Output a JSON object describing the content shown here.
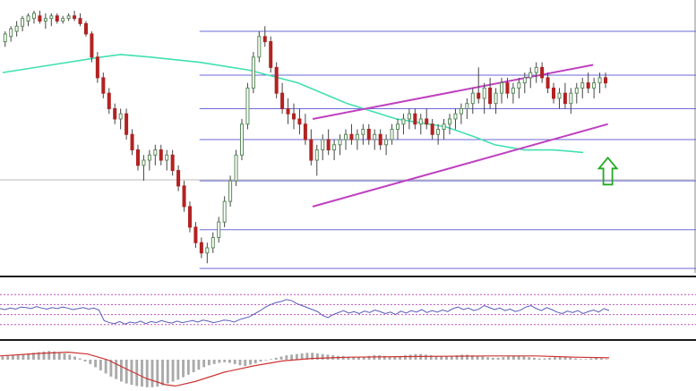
{
  "colors": {
    "bull": "#5a8a5a",
    "bull_fill": "#ffffff",
    "bear": "#b22222",
    "wick": "#444444",
    "ma": "#40e0b0",
    "fib": "#6a6ad8",
    "channel": "#c040c0",
    "arrow": "#22aa22",
    "rsi": "#5a5ab8",
    "rsi_guides": "#c050c0",
    "macd_signal": "#cc3333",
    "macd_hist": "#aaaaaa",
    "separator": "#1a1a1a"
  },
  "chart_data": [
    {
      "type": "candlestick",
      "panel": "price",
      "title": "",
      "xlabel": "",
      "ylabel": "",
      "x_range": [
        0,
        140
      ],
      "y_range": [
        0,
        100
      ],
      "candles": [
        [
          88,
          92,
          86,
          91
        ],
        [
          90,
          94,
          88,
          93
        ],
        [
          92,
          96,
          90,
          94
        ],
        [
          94,
          98,
          92,
          97
        ],
        [
          96,
          99,
          94,
          98
        ],
        [
          97,
          100,
          95,
          99
        ],
        [
          98,
          100,
          95,
          96
        ],
        [
          96,
          99,
          93,
          97
        ],
        [
          97,
          99,
          94,
          98
        ],
        [
          98,
          99,
          95,
          96
        ],
        [
          96,
          98,
          95,
          97
        ],
        [
          97,
          99,
          96,
          98
        ],
        [
          98,
          100,
          96,
          97
        ],
        [
          97,
          99,
          94,
          95
        ],
        [
          95,
          96,
          90,
          91
        ],
        [
          91,
          92,
          80,
          82
        ],
        [
          82,
          84,
          72,
          74
        ],
        [
          74,
          76,
          66,
          68
        ],
        [
          68,
          70,
          60,
          62
        ],
        [
          62,
          64,
          56,
          58
        ],
        [
          58,
          62,
          54,
          60
        ],
        [
          60,
          62,
          50,
          52
        ],
        [
          52,
          54,
          44,
          46
        ],
        [
          46,
          48,
          38,
          40
        ],
        [
          40,
          44,
          34,
          42
        ],
        [
          42,
          46,
          38,
          44
        ],
        [
          44,
          48,
          40,
          46
        ],
        [
          46,
          48,
          40,
          42
        ],
        [
          42,
          46,
          38,
          44
        ],
        [
          44,
          46,
          36,
          38
        ],
        [
          38,
          40,
          30,
          32
        ],
        [
          32,
          34,
          22,
          24
        ],
        [
          24,
          26,
          14,
          16
        ],
        [
          16,
          18,
          8,
          10
        ],
        [
          10,
          12,
          4,
          6
        ],
        [
          6,
          10,
          2,
          8
        ],
        [
          8,
          14,
          6,
          12
        ],
        [
          12,
          20,
          10,
          18
        ],
        [
          18,
          28,
          16,
          26
        ],
        [
          26,
          36,
          24,
          34
        ],
        [
          34,
          46,
          32,
          44
        ],
        [
          44,
          58,
          42,
          56
        ],
        [
          56,
          72,
          54,
          70
        ],
        [
          70,
          84,
          68,
          82
        ],
        [
          82,
          92,
          80,
          90
        ],
        [
          90,
          94,
          86,
          88
        ],
        [
          88,
          90,
          76,
          78
        ],
        [
          78,
          80,
          66,
          68
        ],
        [
          68,
          72,
          60,
          62
        ],
        [
          62,
          66,
          56,
          60
        ],
        [
          60,
          64,
          54,
          58
        ],
        [
          58,
          62,
          52,
          56
        ],
        [
          56,
          60,
          48,
          50
        ],
        [
          50,
          54,
          40,
          42
        ],
        [
          42,
          48,
          36,
          46
        ],
        [
          46,
          52,
          42,
          50
        ],
        [
          50,
          54,
          44,
          46
        ],
        [
          46,
          50,
          42,
          48
        ],
        [
          48,
          52,
          44,
          50
        ],
        [
          50,
          54,
          46,
          52
        ],
        [
          52,
          56,
          48,
          50
        ],
        [
          50,
          54,
          46,
          52
        ],
        [
          52,
          56,
          48,
          54
        ],
        [
          54,
          56,
          48,
          50
        ],
        [
          50,
          54,
          46,
          52
        ],
        [
          52,
          54,
          46,
          48
        ],
        [
          48,
          52,
          44,
          50
        ],
        [
          50,
          56,
          48,
          54
        ],
        [
          54,
          58,
          50,
          56
        ],
        [
          56,
          60,
          52,
          58
        ],
        [
          58,
          62,
          54,
          60
        ],
        [
          60,
          62,
          54,
          56
        ],
        [
          56,
          60,
          52,
          58
        ],
        [
          58,
          62,
          54,
          56
        ],
        [
          56,
          58,
          50,
          52
        ],
        [
          52,
          56,
          48,
          54
        ],
        [
          54,
          58,
          50,
          56
        ],
        [
          56,
          60,
          52,
          58
        ],
        [
          58,
          62,
          54,
          60
        ],
        [
          60,
          64,
          56,
          62
        ],
        [
          62,
          66,
          58,
          64
        ],
        [
          64,
          70,
          60,
          68
        ],
        [
          68,
          78,
          64,
          66
        ],
        [
          66,
          72,
          60,
          70
        ],
        [
          70,
          74,
          62,
          64
        ],
        [
          64,
          70,
          60,
          68
        ],
        [
          68,
          74,
          64,
          72
        ],
        [
          72,
          74,
          66,
          68
        ],
        [
          68,
          72,
          64,
          70
        ],
        [
          70,
          74,
          66,
          72
        ],
        [
          72,
          76,
          68,
          74
        ],
        [
          74,
          78,
          70,
          76
        ],
        [
          76,
          80,
          72,
          78
        ],
        [
          78,
          80,
          72,
          74
        ],
        [
          74,
          76,
          68,
          70
        ],
        [
          70,
          72,
          64,
          66
        ],
        [
          66,
          70,
          62,
          68
        ],
        [
          68,
          72,
          62,
          64
        ],
        [
          64,
          70,
          60,
          68
        ],
        [
          68,
          72,
          64,
          70
        ],
        [
          70,
          74,
          66,
          72
        ],
        [
          72,
          76,
          68,
          70
        ],
        [
          70,
          74,
          66,
          72
        ],
        [
          72,
          76,
          68,
          74
        ],
        [
          74,
          76,
          70,
          72
        ]
      ],
      "moving_average": [
        [
          0,
          76
        ],
        [
          10,
          79
        ],
        [
          20,
          82
        ],
        [
          24,
          83
        ],
        [
          30,
          82
        ],
        [
          40,
          80
        ],
        [
          50,
          77
        ],
        [
          60,
          72
        ],
        [
          70,
          64
        ],
        [
          80,
          58
        ],
        [
          90,
          55
        ],
        [
          96,
          51
        ],
        [
          100,
          48
        ],
        [
          106,
          46
        ],
        [
          112,
          46
        ],
        [
          118,
          45
        ]
      ],
      "fib_levels": [
        92,
        75,
        62,
        50,
        34,
        15,
        0
      ],
      "channel": {
        "upper": [
          [
            63,
            58
          ],
          [
            120,
            79
          ]
        ],
        "lower": [
          [
            63,
            24
          ],
          [
            123,
            56
          ]
        ]
      },
      "annotation": {
        "type": "arrow-up",
        "x": 123,
        "y": 36
      }
    },
    {
      "type": "line",
      "panel": "rsi",
      "title": "",
      "y_range": [
        0,
        100
      ],
      "guides": [
        80,
        60,
        40,
        20
      ],
      "values": [
        52,
        50,
        53,
        51,
        55,
        54,
        52,
        56,
        53,
        51,
        54,
        52,
        55,
        53,
        50,
        52,
        54,
        51,
        53,
        49,
        28,
        24,
        22,
        26,
        21,
        25,
        23,
        27,
        22,
        26,
        24,
        28,
        25,
        23,
        27,
        24,
        26,
        28,
        25,
        29,
        27,
        24,
        26,
        29,
        28,
        25,
        30,
        33,
        36,
        42,
        48,
        55,
        60,
        64,
        66,
        70,
        68,
        62,
        58,
        54,
        50,
        46,
        38,
        34,
        40,
        44,
        48,
        43,
        46,
        42,
        47,
        44,
        49,
        46,
        42,
        45,
        40,
        47,
        43,
        48,
        45,
        50,
        44,
        48,
        45,
        49,
        46,
        52,
        55,
        50,
        53,
        48,
        51,
        58,
        54,
        50,
        53,
        48,
        51,
        46,
        49,
        55,
        58,
        52,
        48,
        54,
        50,
        45,
        42,
        47,
        44,
        48,
        42,
        46,
        49,
        45,
        52,
        48
      ]
    },
    {
      "type": "bar",
      "panel": "macd",
      "title": "",
      "y_range": [
        -100,
        40
      ],
      "histogram": [
        10,
        12,
        14,
        16,
        18,
        20,
        22,
        24,
        26,
        28,
        26,
        24,
        20,
        16,
        10,
        4,
        -6,
        -14,
        -24,
        -34,
        -44,
        -54,
        -62,
        -70,
        -76,
        -80,
        -84,
        -86,
        -88,
        -88,
        -86,
        -82,
        -76,
        -70,
        -64,
        -56,
        -48,
        -40,
        -32,
        -24,
        -18,
        -14,
        -10,
        -8,
        -10,
        -14,
        -18,
        -20,
        -16,
        -12,
        -6,
        -2,
        2,
        6,
        10,
        14,
        16,
        18,
        20,
        22,
        22,
        20,
        18,
        16,
        14,
        12,
        12,
        10,
        10,
        8,
        10,
        12,
        14,
        14,
        12,
        10,
        10,
        12,
        14,
        16,
        18,
        18,
        16,
        14,
        12,
        10,
        10,
        12,
        14,
        16,
        16,
        14,
        12,
        10,
        8,
        6,
        6,
        8,
        10,
        12,
        12,
        10,
        8,
        6,
        4,
        4,
        6,
        8,
        10,
        8,
        6,
        4,
        2,
        2,
        4,
        6,
        4,
        2
      ],
      "signal": [
        [
          0,
          12
        ],
        [
          8,
          20
        ],
        [
          14,
          24
        ],
        [
          18,
          18
        ],
        [
          22,
          0
        ],
        [
          26,
          -30
        ],
        [
          30,
          -60
        ],
        [
          34,
          -80
        ],
        [
          36,
          -84
        ],
        [
          40,
          -70
        ],
        [
          46,
          -40
        ],
        [
          52,
          -20
        ],
        [
          58,
          -4
        ],
        [
          64,
          4
        ],
        [
          72,
          8
        ],
        [
          84,
          10
        ],
        [
          100,
          12
        ],
        [
          110,
          12
        ],
        [
          118,
          8
        ],
        [
          125,
          6
        ]
      ]
    }
  ]
}
